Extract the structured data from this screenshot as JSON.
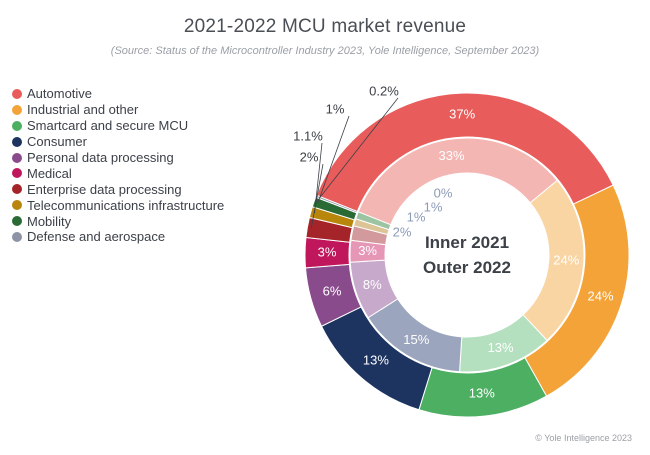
{
  "chart_data": {
    "type": "donut",
    "title": "2021-2022 MCU market revenue",
    "subtitle": "(Source: Status of the Microcontroller Industry 2023, Yole Intelligence, September 2023)",
    "center_labels": [
      "Inner 2021",
      "Outer 2022"
    ],
    "categories": [
      "Automotive",
      "Industrial and other",
      "Smartcard and secure MCU",
      "Consumer",
      "Personal data processing",
      "Medical",
      "Enterprise data processing",
      "Telecommunications infrastructure",
      "Mobility",
      "Defense and aerospace"
    ],
    "colors": [
      "#e85c5b",
      "#f4a338",
      "#4caf62",
      "#1d3461",
      "#8a4b8c",
      "#c0175c",
      "#a5242a",
      "#b8860b",
      "#2a6b35",
      "#8c94a6"
    ],
    "inner_colors": [
      "#f4b6b3",
      "#f9d5a3",
      "#b4e0c0",
      "#9ba5bd",
      "#c7a9cc",
      "#e697b6",
      "#d39a9d",
      "#dcc497",
      "#9cc3a2",
      "#c6cad4"
    ],
    "series": [
      {
        "name": "2021",
        "ring": "inner",
        "values": [
          33,
          24,
          13,
          15,
          8,
          3,
          2,
          1,
          1,
          0
        ],
        "labels": [
          "33%",
          "24%",
          "13%",
          "15%",
          "8%",
          "3%",
          "2%",
          "1%",
          "1%",
          "0%"
        ]
      },
      {
        "name": "2022",
        "ring": "outer",
        "values": [
          37,
          24,
          13,
          13,
          6,
          3,
          2,
          1.1,
          1,
          0.2
        ],
        "labels": [
          "37%",
          "24%",
          "13%",
          "13%",
          "6%",
          "3%",
          "2%",
          "1.1%",
          "1%",
          "0.2%"
        ]
      }
    ]
  },
  "credit": "© Yole Intelligence 2023"
}
